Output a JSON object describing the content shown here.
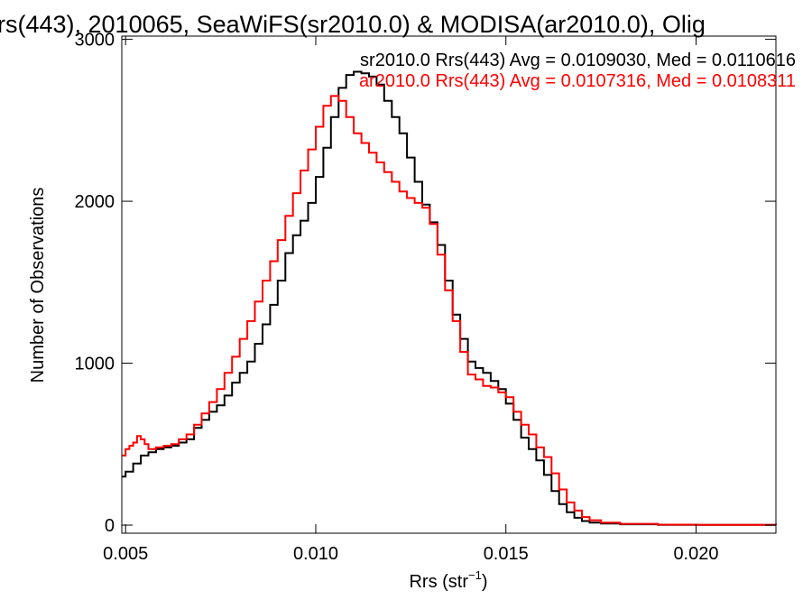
{
  "chart_data": {
    "type": "line",
    "title": "rs(443), 2010065, SeaWiFS(sr2010.0) & MODISA(ar2010.0), Olig",
    "xlabel": "Rrs (str",
    "xlabel_sup": "−1",
    "xlabel_close": ")",
    "ylabel": "Number of Observations",
    "xlim": [
      0.0049,
      0.0221
    ],
    "ylim": [
      -50,
      3020
    ],
    "x_ticks": [
      {
        "value": 0.005,
        "label": "0.005"
      },
      {
        "value": 0.01,
        "label": "0.010"
      },
      {
        "value": 0.015,
        "label": "0.015"
      },
      {
        "value": 0.02,
        "label": "0.020"
      }
    ],
    "y_ticks": [
      {
        "value": 0,
        "label": "0"
      },
      {
        "value": 1000,
        "label": "1000"
      },
      {
        "value": 2000,
        "label": "2000"
      },
      {
        "value": 3000,
        "label": "3000"
      }
    ],
    "grid": false,
    "legend_position": "top-right",
    "series": [
      {
        "name": "sr2010.0",
        "legend": "sr2010.0 Rrs(443) Avg = 0.0109030, Med = 0.0110616",
        "color": "#000000",
        "points": [
          [
            0.0049,
            300
          ],
          [
            0.005,
            330
          ],
          [
            0.0052,
            380
          ],
          [
            0.0054,
            430
          ],
          [
            0.0056,
            450
          ],
          [
            0.0058,
            470
          ],
          [
            0.006,
            480
          ],
          [
            0.0062,
            490
          ],
          [
            0.0064,
            510
          ],
          [
            0.0066,
            530
          ],
          [
            0.0068,
            600
          ],
          [
            0.007,
            650
          ],
          [
            0.0072,
            700
          ],
          [
            0.0074,
            740
          ],
          [
            0.0076,
            800
          ],
          [
            0.0078,
            880
          ],
          [
            0.008,
            940
          ],
          [
            0.0082,
            1010
          ],
          [
            0.0084,
            1120
          ],
          [
            0.0086,
            1240
          ],
          [
            0.0088,
            1360
          ],
          [
            0.009,
            1510
          ],
          [
            0.0092,
            1680
          ],
          [
            0.0094,
            1790
          ],
          [
            0.0096,
            1880
          ],
          [
            0.0098,
            1990
          ],
          [
            0.01,
            2150
          ],
          [
            0.0102,
            2330
          ],
          [
            0.0104,
            2520
          ],
          [
            0.0106,
            2700
          ],
          [
            0.0108,
            2780
          ],
          [
            0.011,
            2800
          ],
          [
            0.0112,
            2790
          ],
          [
            0.0114,
            2770
          ],
          [
            0.0116,
            2720
          ],
          [
            0.0118,
            2620
          ],
          [
            0.012,
            2520
          ],
          [
            0.0122,
            2420
          ],
          [
            0.0124,
            2270
          ],
          [
            0.0126,
            2120
          ],
          [
            0.0128,
            1980
          ],
          [
            0.013,
            1870
          ],
          [
            0.0132,
            1730
          ],
          [
            0.0134,
            1510
          ],
          [
            0.0136,
            1300
          ],
          [
            0.0138,
            1150
          ],
          [
            0.014,
            1010
          ],
          [
            0.0142,
            970
          ],
          [
            0.0144,
            940
          ],
          [
            0.0146,
            890
          ],
          [
            0.0148,
            840
          ],
          [
            0.015,
            750
          ],
          [
            0.0152,
            650
          ],
          [
            0.0154,
            540
          ],
          [
            0.0156,
            470
          ],
          [
            0.0158,
            400
          ],
          [
            0.016,
            310
          ],
          [
            0.0162,
            210
          ],
          [
            0.0164,
            130
          ],
          [
            0.0166,
            80
          ],
          [
            0.0168,
            45
          ],
          [
            0.017,
            25
          ],
          [
            0.0172,
            15
          ],
          [
            0.0175,
            10
          ],
          [
            0.018,
            5
          ],
          [
            0.019,
            2
          ],
          [
            0.02,
            1
          ],
          [
            0.0221,
            0
          ]
        ]
      },
      {
        "name": "ar2010.0",
        "legend": "ar2010.0 Rrs(443) Avg = 0.0107316, Med = 0.0108311",
        "color": "#ff0000",
        "points": [
          [
            0.0049,
            430
          ],
          [
            0.005,
            470
          ],
          [
            0.0051,
            490
          ],
          [
            0.0052,
            510
          ],
          [
            0.0053,
            550
          ],
          [
            0.0054,
            530
          ],
          [
            0.0055,
            500
          ],
          [
            0.0056,
            470
          ],
          [
            0.0058,
            480
          ],
          [
            0.006,
            490
          ],
          [
            0.0062,
            500
          ],
          [
            0.0064,
            530
          ],
          [
            0.0066,
            560
          ],
          [
            0.0068,
            620
          ],
          [
            0.007,
            690
          ],
          [
            0.0072,
            760
          ],
          [
            0.0074,
            840
          ],
          [
            0.0076,
            940
          ],
          [
            0.0078,
            1040
          ],
          [
            0.008,
            1150
          ],
          [
            0.0082,
            1260
          ],
          [
            0.0084,
            1380
          ],
          [
            0.0086,
            1510
          ],
          [
            0.0088,
            1630
          ],
          [
            0.009,
            1760
          ],
          [
            0.0092,
            1910
          ],
          [
            0.0094,
            2050
          ],
          [
            0.0096,
            2190
          ],
          [
            0.0098,
            2320
          ],
          [
            0.01,
            2460
          ],
          [
            0.0102,
            2590
          ],
          [
            0.0104,
            2650
          ],
          [
            0.0106,
            2620
          ],
          [
            0.0108,
            2520
          ],
          [
            0.011,
            2420
          ],
          [
            0.0112,
            2360
          ],
          [
            0.0114,
            2300
          ],
          [
            0.0116,
            2240
          ],
          [
            0.0118,
            2180
          ],
          [
            0.012,
            2120
          ],
          [
            0.0122,
            2060
          ],
          [
            0.0124,
            2020
          ],
          [
            0.0126,
            1990
          ],
          [
            0.0128,
            1960
          ],
          [
            0.013,
            1860
          ],
          [
            0.0132,
            1670
          ],
          [
            0.0134,
            1450
          ],
          [
            0.0136,
            1260
          ],
          [
            0.0138,
            1070
          ],
          [
            0.014,
            930
          ],
          [
            0.0142,
            900
          ],
          [
            0.0144,
            860
          ],
          [
            0.0146,
            850
          ],
          [
            0.0148,
            820
          ],
          [
            0.015,
            790
          ],
          [
            0.0152,
            700
          ],
          [
            0.0154,
            620
          ],
          [
            0.0156,
            560
          ],
          [
            0.0158,
            480
          ],
          [
            0.016,
            420
          ],
          [
            0.0162,
            320
          ],
          [
            0.0164,
            220
          ],
          [
            0.0166,
            140
          ],
          [
            0.0168,
            90
          ],
          [
            0.017,
            50
          ],
          [
            0.0172,
            30
          ],
          [
            0.0175,
            15
          ],
          [
            0.018,
            8
          ],
          [
            0.019,
            3
          ],
          [
            0.02,
            1
          ],
          [
            0.0221,
            0
          ]
        ]
      }
    ]
  }
}
